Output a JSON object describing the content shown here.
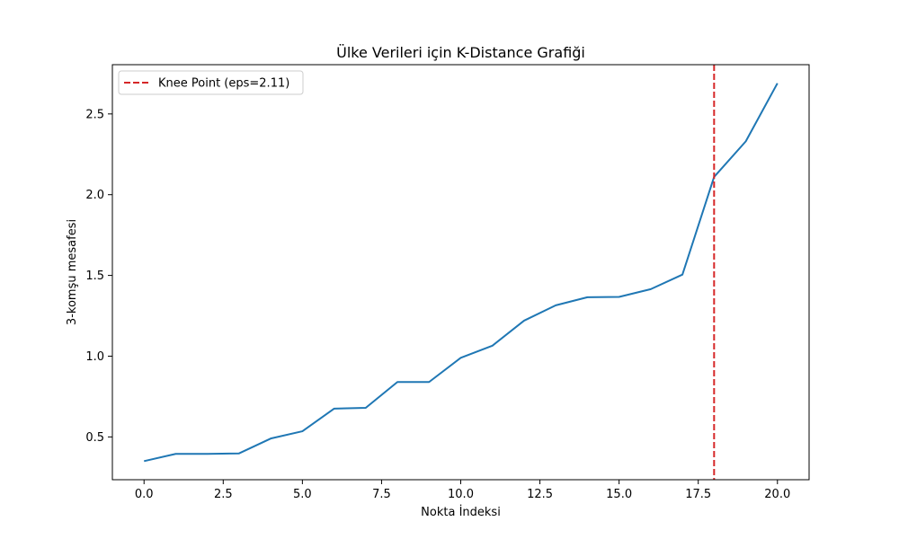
{
  "chart_data": {
    "type": "line",
    "title": "Ülke Verileri için K-Distance Grafiği",
    "xlabel": "Nokta İndeksi",
    "ylabel": "3-komşu mesafesi",
    "xlim": [
      -1.0,
      21.0
    ],
    "ylim": [
      0.235,
      2.805
    ],
    "x_ticks": [
      0.0,
      2.5,
      5.0,
      7.5,
      10.0,
      12.5,
      15.0,
      17.5,
      20.0
    ],
    "x_tick_labels": [
      "0.0",
      "2.5",
      "5.0",
      "7.5",
      "10.0",
      "12.5",
      "15.0",
      "17.5",
      "20.0"
    ],
    "y_ticks": [
      0.5,
      1.0,
      1.5,
      2.0,
      2.5
    ],
    "y_tick_labels": [
      "0.5",
      "1.0",
      "1.5",
      "2.0",
      "2.5"
    ],
    "grid": false,
    "legend_position": "top-left",
    "series": [
      {
        "color": "#1f77b4",
        "x": [
          0,
          1,
          2,
          3,
          4,
          5,
          6,
          7,
          8,
          9,
          10,
          11,
          12,
          13,
          14,
          15,
          16,
          17,
          18,
          19,
          20
        ],
        "values": [
          0.35,
          0.395,
          0.395,
          0.398,
          0.49,
          0.535,
          0.675,
          0.68,
          0.84,
          0.84,
          0.99,
          1.065,
          1.22,
          1.315,
          1.365,
          1.367,
          1.415,
          1.505,
          2.11,
          2.33,
          2.69
        ]
      }
    ],
    "vlines": [
      {
        "x": 18,
        "color": "#d62728",
        "style": "dashed",
        "label": "Knee Point (eps=2.11)"
      }
    ]
  }
}
